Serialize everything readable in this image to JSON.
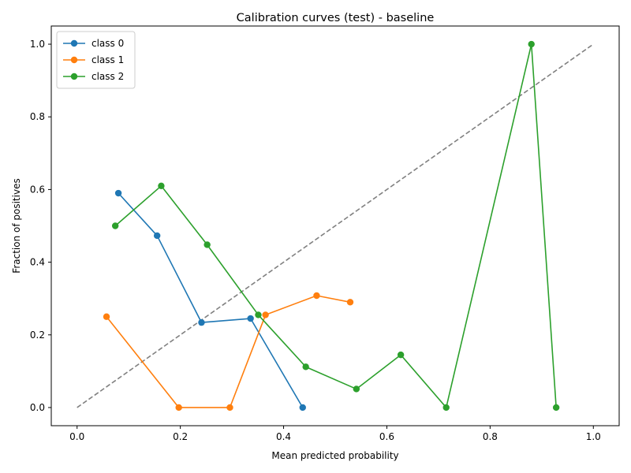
{
  "chart_data": {
    "type": "line",
    "title": "Calibration curves (test) - baseline",
    "xlabel": "Mean predicted probability",
    "ylabel": "Fraction of positives",
    "xlim": [
      -0.05,
      1.05
    ],
    "ylim": [
      -0.05,
      1.05
    ],
    "x_ticks": [
      "0.0",
      "0.2",
      "0.4",
      "0.6",
      "0.8",
      "1.0"
    ],
    "y_ticks": [
      "0.0",
      "0.2",
      "0.4",
      "0.6",
      "0.8",
      "1.0"
    ],
    "grid": false,
    "legend_position": "top-left",
    "reference_line": {
      "x": [
        0,
        1
      ],
      "y": [
        0,
        1
      ],
      "style": "dashed",
      "color": "#808080"
    },
    "series": [
      {
        "name": "class 0",
        "color": "#1f77b4",
        "x": [
          0.08,
          0.155,
          0.241,
          0.336,
          0.437
        ],
        "y": [
          0.59,
          0.473,
          0.234,
          0.245,
          0.0
        ]
      },
      {
        "name": "class 1",
        "color": "#ff7f0e",
        "x": [
          0.057,
          0.197,
          0.296,
          0.365,
          0.464,
          0.529
        ],
        "y": [
          0.25,
          0.0,
          0.0,
          0.255,
          0.308,
          0.29
        ]
      },
      {
        "name": "class 2",
        "color": "#2ca02c",
        "x": [
          0.074,
          0.163,
          0.252,
          0.351,
          0.443,
          0.541,
          0.627,
          0.715,
          0.88,
          0.928
        ],
        "y": [
          0.5,
          0.61,
          0.448,
          0.255,
          0.112,
          0.051,
          0.145,
          0.0,
          1.0,
          0.0
        ]
      }
    ]
  }
}
